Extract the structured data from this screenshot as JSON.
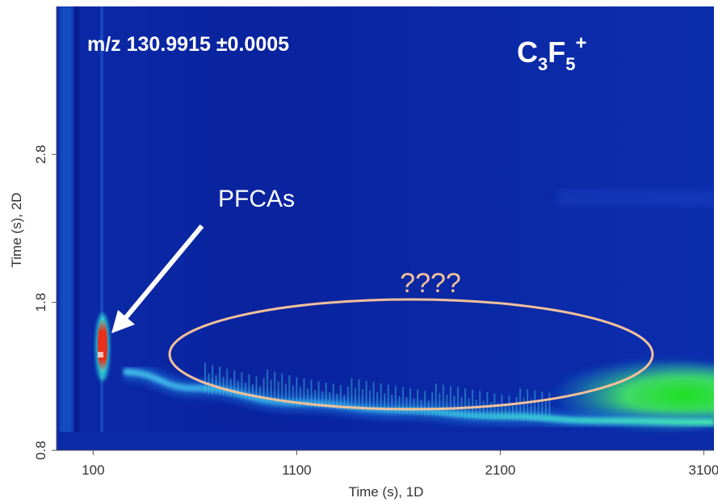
{
  "chart_data": {
    "type": "heatmap",
    "xlabel": "Time (s), 1D",
    "ylabel": "Time (s), 2D",
    "x_ticks": [
      "100",
      "1100",
      "2100",
      "3100"
    ],
    "y_ticks": [
      "0.8",
      "1.8",
      "2.8"
    ],
    "x_tick_values": [
      100,
      1100,
      2100,
      3100
    ],
    "y_tick_values": [
      0.8,
      1.8,
      2.8
    ],
    "xlim": [
      -80,
      3150
    ],
    "ylim": [
      0.8,
      3.8
    ],
    "colormap": [
      "#0a1e9c",
      "#0a46d6",
      "#1ab8e6",
      "#5bf0a0",
      "#1fd91f",
      "#e83010"
    ],
    "background_color": "#0a1e9c",
    "ridge": [
      {
        "x": 250,
        "y": 1.33
      },
      {
        "x": 600,
        "y": 1.22
      },
      {
        "x": 1100,
        "y": 1.12
      },
      {
        "x": 1600,
        "y": 1.07
      },
      {
        "x": 2100,
        "y": 1.03
      },
      {
        "x": 2600,
        "y": 1.0
      },
      {
        "x": 3150,
        "y": 0.99
      }
    ],
    "hotspot": {
      "x": 230,
      "y": 1.55,
      "label": "PFCAs"
    },
    "green_region": {
      "x_start": 2400,
      "x_end": 3150,
      "y_center": 1.08
    },
    "annotations": {
      "mz": "m/z 130.9915 ±0.0005",
      "formula_main": "C",
      "formula_sub1": "3",
      "formula_mid": "F",
      "formula_sub2": "5",
      "formula_sup": "+",
      "arrow_label": "PFCAs",
      "unknown_label": "????"
    }
  }
}
